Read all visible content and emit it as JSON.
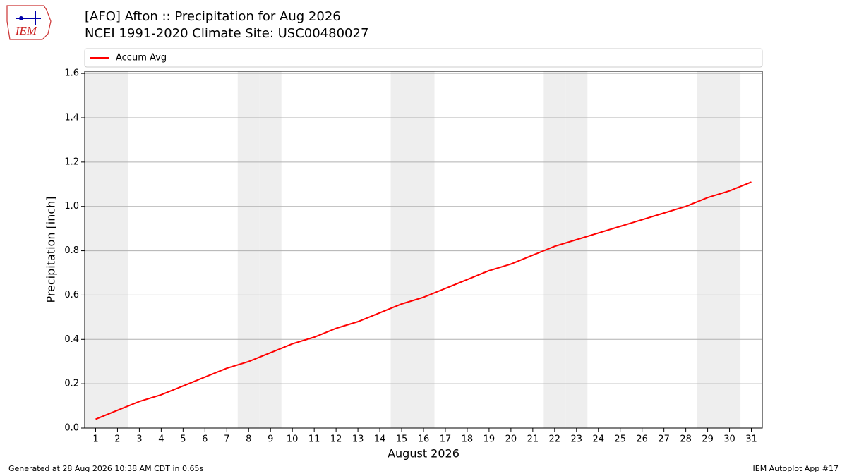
{
  "logo_text": "IEM",
  "footer_left": "Generated at 28 Aug 2026 10:38 AM CDT in 0.65s",
  "footer_right": "IEM Autoplot App #17",
  "chart_data": {
    "type": "line",
    "title": "[AFO] Afton :: Precipitation for Aug 2026",
    "subtitle": "NCEI 1991-2020 Climate Site: USC00480027",
    "x_label": "August 2026",
    "y_label": "Precipitation [inch]",
    "x": [
      1,
      2,
      3,
      4,
      5,
      6,
      7,
      8,
      9,
      10,
      11,
      12,
      13,
      14,
      15,
      16,
      17,
      18,
      19,
      20,
      21,
      22,
      23,
      24,
      25,
      26,
      27,
      28,
      29,
      30,
      31
    ],
    "series": [
      {
        "name": "Accum Avg",
        "color": "#ff0000",
        "values": [
          0.04,
          0.08,
          0.12,
          0.15,
          0.19,
          0.23,
          0.27,
          0.3,
          0.34,
          0.38,
          0.41,
          0.45,
          0.48,
          0.52,
          0.56,
          0.59,
          0.63,
          0.67,
          0.71,
          0.74,
          0.78,
          0.82,
          0.85,
          0.88,
          0.91,
          0.94,
          0.97,
          1.0,
          1.04,
          1.07,
          1.11
        ]
      }
    ],
    "shaded_days": [
      1,
      2,
      8,
      9,
      15,
      16,
      22,
      23,
      29,
      30
    ],
    "shade_color": "#eeeeee",
    "xlim": [
      0.5,
      31.5
    ],
    "xticks": [
      1,
      2,
      3,
      4,
      5,
      6,
      7,
      8,
      9,
      10,
      11,
      12,
      13,
      14,
      15,
      16,
      17,
      18,
      19,
      20,
      21,
      22,
      23,
      24,
      25,
      26,
      27,
      28,
      29,
      30,
      31
    ],
    "ylim": [
      0,
      1.61
    ],
    "yticks": [
      {
        "value": 0,
        "label": "0.0"
      },
      0.2,
      0.4,
      0.6,
      0.8,
      {
        "value": 1,
        "label": "1.0"
      },
      1.2,
      1.4,
      1.6
    ],
    "grid": true,
    "legend": "top"
  }
}
